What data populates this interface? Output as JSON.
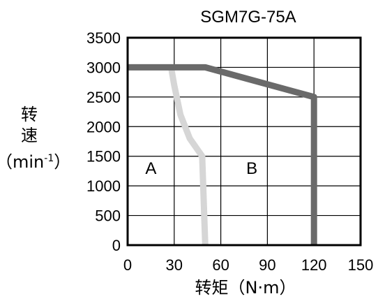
{
  "chart_data": {
    "type": "line",
    "title": "SGM7G-75A",
    "xlabel": "转矩（N·m）",
    "ylabel": {
      "line1": "转",
      "line2": "速",
      "line3_prefix": "（min",
      "line3_sup": "-1",
      "line3_suffix": "）"
    },
    "xlim": [
      0,
      150
    ],
    "ylim": [
      0,
      3500
    ],
    "xticks": [
      "0",
      "30",
      "60",
      "90",
      "120",
      "150"
    ],
    "yticks": [
      "0",
      "500",
      "1000",
      "1500",
      "2000",
      "2500",
      "3000",
      "3500"
    ],
    "grid": true,
    "regions": [
      {
        "label": "A",
        "x": 15,
        "y": 1200
      },
      {
        "label": "B",
        "x": 80,
        "y": 1200
      }
    ],
    "series": [
      {
        "name": "A",
        "color": "#d6d6d6",
        "points": [
          [
            0,
            3000
          ],
          [
            28,
            3000
          ],
          [
            30,
            2700
          ],
          [
            34,
            2200
          ],
          [
            40,
            1800
          ],
          [
            48,
            1500
          ],
          [
            50,
            0
          ]
        ]
      },
      {
        "name": "B",
        "color": "#6a6a6a",
        "points": [
          [
            0,
            3000
          ],
          [
            50,
            3000
          ],
          [
            120,
            2500
          ],
          [
            120,
            0
          ]
        ]
      }
    ]
  }
}
